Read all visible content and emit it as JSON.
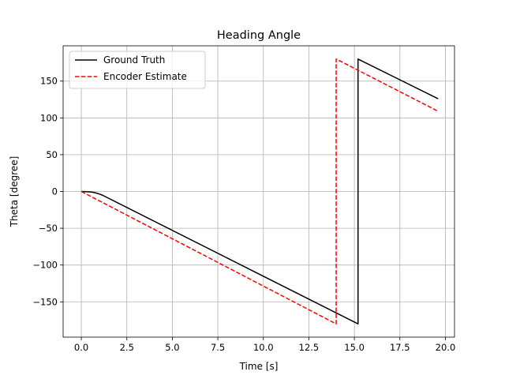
{
  "chart_data": {
    "type": "line",
    "title": "Heading Angle",
    "xlabel": "Time [s]",
    "ylabel": "Theta [degree]",
    "xlim": [
      -1.0,
      20.5
    ],
    "ylim": [
      -198,
      198
    ],
    "xticks": [
      0.0,
      2.5,
      5.0,
      7.5,
      10.0,
      12.5,
      15.0,
      17.5,
      20.0
    ],
    "xtick_labels": [
      "0.0",
      "2.5",
      "5.0",
      "7.5",
      "10.0",
      "12.5",
      "15.0",
      "17.5",
      "20.0"
    ],
    "yticks": [
      -150,
      -100,
      -50,
      0,
      50,
      100,
      150
    ],
    "ytick_labels": [
      "−150",
      "−100",
      "−50",
      "0",
      "50",
      "100",
      "150"
    ],
    "grid": true,
    "legend_position": "top-left",
    "series": [
      {
        "name": "Ground Truth",
        "color": "#000000",
        "style": "solid",
        "x": [
          0.0,
          0.3,
          0.6,
          0.8,
          1.0,
          1.2,
          15.2,
          15.2,
          19.6
        ],
        "y": [
          0.0,
          -0.3,
          -0.9,
          -2.0,
          -3.5,
          -5.5,
          -180.0,
          180.0,
          126.0
        ]
      },
      {
        "name": "Encoder Estimate",
        "color": "#ff0000",
        "style": "dashed",
        "x": [
          0.0,
          14.0,
          14.0,
          19.6
        ],
        "y": [
          0.0,
          -180.0,
          180.0,
          109.0
        ]
      }
    ]
  }
}
